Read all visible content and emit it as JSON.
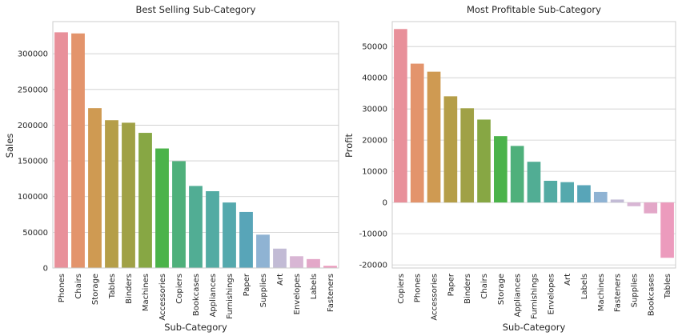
{
  "chart_data": [
    {
      "type": "bar",
      "title": "Best Selling Sub-Category",
      "xlabel": "Sub-Category",
      "ylabel": "Sales",
      "ylim": [
        0,
        345000
      ],
      "yticks": [
        0,
        50000,
        100000,
        150000,
        200000,
        250000,
        300000
      ],
      "grid": "horizontal",
      "categories": [
        "Phones",
        "Chairs",
        "Storage",
        "Tables",
        "Binders",
        "Machines",
        "Accessories",
        "Copiers",
        "Bookcases",
        "Appliances",
        "Furnishings",
        "Paper",
        "Supplies",
        "Art",
        "Envelopes",
        "Labels",
        "Fasteners"
      ],
      "values": [
        330007,
        328449,
        223844,
        206966,
        203413,
        189239,
        167380,
        149528,
        114880,
        107532,
        91705,
        78479,
        46674,
        27119,
        16476,
        12486,
        3024
      ],
      "colors": [
        "#e8909a",
        "#e3946c",
        "#cf9a52",
        "#b59e48",
        "#a0a146",
        "#87a744",
        "#4bb34a",
        "#4fb07b",
        "#51ad94",
        "#53aba3",
        "#55a9ad",
        "#58a5b8",
        "#8fb3d3",
        "#c2bbd5",
        "#d8b6d4",
        "#e3a7c8",
        "#ec9bbd"
      ]
    },
    {
      "type": "bar",
      "title": "Most Profitable Sub-Category",
      "xlabel": "Sub-Category",
      "ylabel": "Profit",
      "ylim": [
        -21000,
        58000
      ],
      "yticks": [
        -20000,
        -10000,
        0,
        10000,
        20000,
        30000,
        40000,
        50000
      ],
      "grid": "horizontal",
      "categories": [
        "Copiers",
        "Phones",
        "Accessories",
        "Paper",
        "Binders",
        "Chairs",
        "Storage",
        "Appliances",
        "Furnishings",
        "Envelopes",
        "Art",
        "Labels",
        "Machines",
        "Fasteners",
        "Supplies",
        "Bookcases",
        "Tables"
      ],
      "values": [
        55618,
        44516,
        41937,
        34054,
        30222,
        26590,
        21279,
        18138,
        13059,
        6964,
        6528,
        5546,
        3385,
        950,
        -1189,
        -3473,
        -17725
      ],
      "colors": [
        "#e8909a",
        "#e3946c",
        "#cf9a52",
        "#b59e48",
        "#a0a146",
        "#87a744",
        "#4bb34a",
        "#4fb07b",
        "#51ad94",
        "#53aba3",
        "#55a9ad",
        "#58a5b8",
        "#8fb3d3",
        "#c2bbd5",
        "#d8b6d4",
        "#e3a7c8",
        "#ec9bbd"
      ]
    }
  ]
}
